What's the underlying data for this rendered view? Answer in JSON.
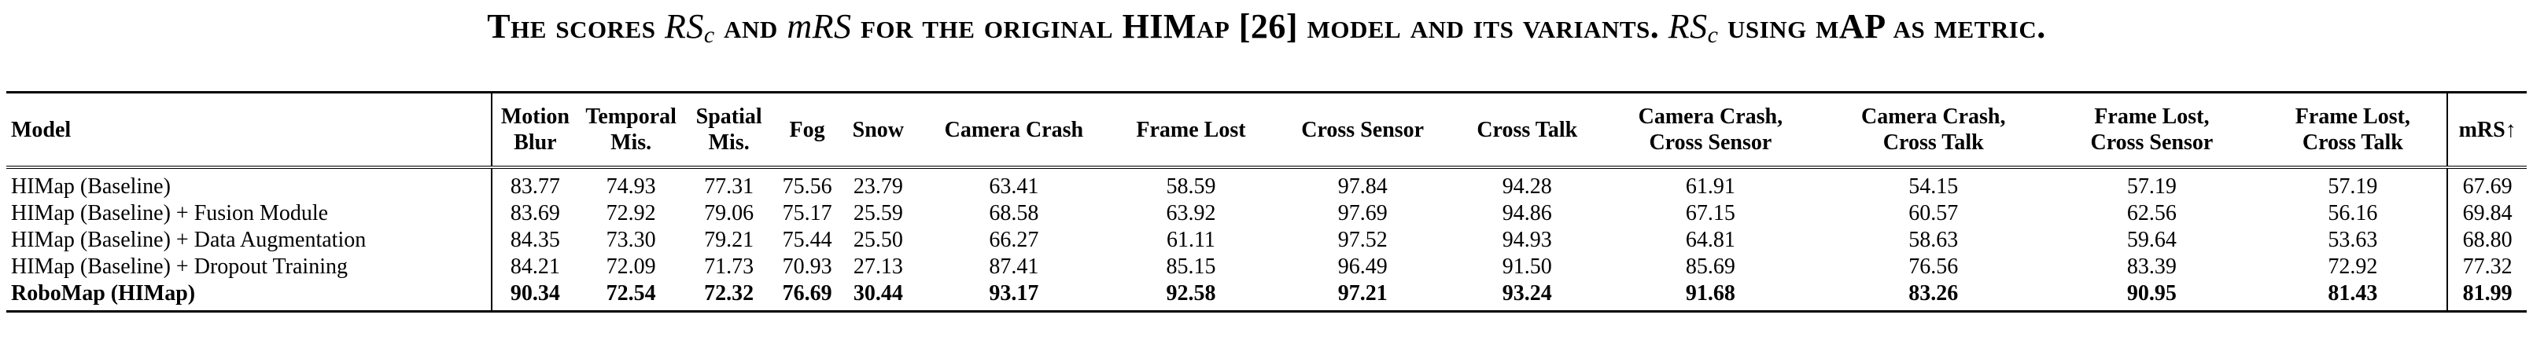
{
  "caption": {
    "part1": "The scores ",
    "m1": "RS",
    "m1sub": "c",
    "part2": " and ",
    "m2": "mRS",
    "part3": " for the original HIMap [26] model and its variants. ",
    "m3": "RS",
    "m3sub": "c",
    "part4": " using mAP as metric."
  },
  "table": {
    "columns": [
      [
        "Model"
      ],
      [
        "Motion",
        "Blur"
      ],
      [
        "Temporal",
        "Mis."
      ],
      [
        "Spatial",
        "Mis."
      ],
      [
        "Fog"
      ],
      [
        "Snow"
      ],
      [
        "Camera Crash"
      ],
      [
        "Frame Lost"
      ],
      [
        "Cross Sensor"
      ],
      [
        "Cross Talk"
      ],
      [
        "Camera Crash,",
        "Cross Sensor"
      ],
      [
        "Camera Crash,",
        "Cross Talk"
      ],
      [
        "Frame Lost,",
        "Cross Sensor"
      ],
      [
        "Frame Lost,",
        "Cross Talk"
      ],
      [
        "mRS↑"
      ]
    ],
    "rows": [
      {
        "bold": false,
        "cells": [
          "HIMap (Baseline)",
          "83.77",
          "74.93",
          "77.31",
          "75.56",
          "23.79",
          "63.41",
          "58.59",
          "97.84",
          "94.28",
          "61.91",
          "54.15",
          "57.19",
          "57.19",
          "67.69"
        ]
      },
      {
        "bold": false,
        "cells": [
          "HIMap (Baseline) + Fusion Module",
          "83.69",
          "72.92",
          "79.06",
          "75.17",
          "25.59",
          "68.58",
          "63.92",
          "97.69",
          "94.86",
          "67.15",
          "60.57",
          "62.56",
          "56.16",
          "69.84"
        ]
      },
      {
        "bold": false,
        "cells": [
          "HIMap (Baseline) + Data Augmentation",
          "84.35",
          "73.30",
          "79.21",
          "75.44",
          "25.50",
          "66.27",
          "61.11",
          "97.52",
          "94.93",
          "64.81",
          "58.63",
          "59.64",
          "53.63",
          "68.80"
        ]
      },
      {
        "bold": false,
        "cells": [
          "HIMap (Baseline) + Dropout Training",
          "84.21",
          "72.09",
          "71.73",
          "70.93",
          "27.13",
          "87.41",
          "85.15",
          "96.49",
          "91.50",
          "85.69",
          "76.56",
          "83.39",
          "72.92",
          "77.32"
        ]
      },
      {
        "bold": true,
        "cells": [
          "RoboMap (HIMap)",
          "90.34",
          "72.54",
          "72.32",
          "76.69",
          "30.44",
          "93.17",
          "92.58",
          "97.21",
          "93.24",
          "91.68",
          "83.26",
          "90.95",
          "81.43",
          "81.99"
        ]
      }
    ]
  }
}
